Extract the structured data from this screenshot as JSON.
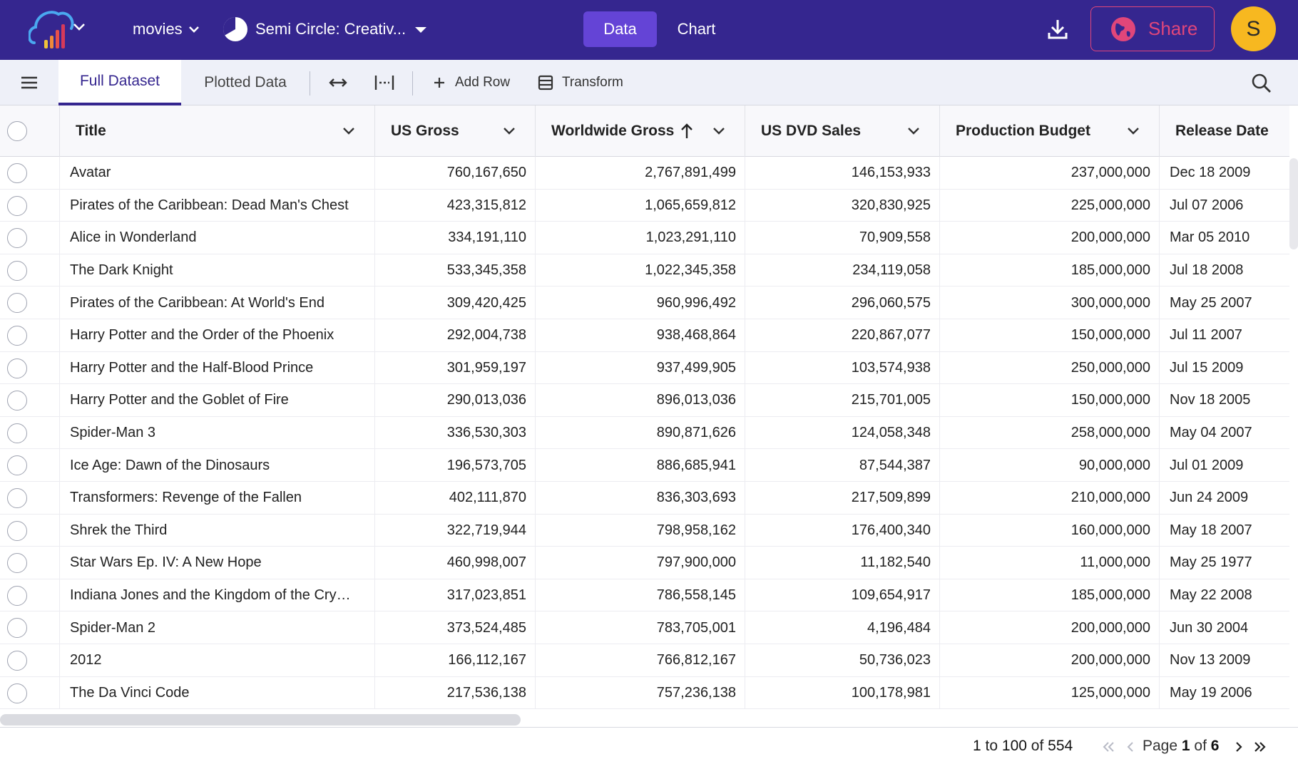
{
  "app": {
    "dataset_name": "movies",
    "chart_type": "Semi Circle: Creativ...",
    "tabs": [
      "Data",
      "Chart"
    ],
    "share_label": "Share",
    "avatar_initial": "S",
    "colors": {
      "topbar": "#35268f",
      "active_tab": "#6444d6",
      "share": "#e0467a",
      "avatar": "#f7b820"
    }
  },
  "toolbar": {
    "tab_full": "Full Dataset",
    "tab_plotted": "Plotted Data",
    "add_row": "Add Row",
    "transform": "Transform"
  },
  "grid": {
    "columns": [
      "Title",
      "US Gross",
      "Worldwide Gross",
      "US DVD Sales",
      "Production Budget",
      "Release Date"
    ],
    "sorted_column": "Worldwide Gross",
    "rows": [
      [
        "Avatar",
        "760,167,650",
        "2,767,891,499",
        "146,153,933",
        "237,000,000",
        "Dec 18 2009"
      ],
      [
        "Pirates of the Caribbean: Dead Man's Chest",
        "423,315,812",
        "1,065,659,812",
        "320,830,925",
        "225,000,000",
        "Jul 07 2006"
      ],
      [
        "Alice in Wonderland",
        "334,191,110",
        "1,023,291,110",
        "70,909,558",
        "200,000,000",
        "Mar 05 2010"
      ],
      [
        "The Dark Knight",
        "533,345,358",
        "1,022,345,358",
        "234,119,058",
        "185,000,000",
        "Jul 18 2008"
      ],
      [
        "Pirates of the Caribbean: At World's End",
        "309,420,425",
        "960,996,492",
        "296,060,575",
        "300,000,000",
        "May 25 2007"
      ],
      [
        "Harry Potter and the Order of the Phoenix",
        "292,004,738",
        "938,468,864",
        "220,867,077",
        "150,000,000",
        "Jul 11 2007"
      ],
      [
        "Harry Potter and the Half-Blood Prince",
        "301,959,197",
        "937,499,905",
        "103,574,938",
        "250,000,000",
        "Jul 15 2009"
      ],
      [
        "Harry Potter and the Goblet of Fire",
        "290,013,036",
        "896,013,036",
        "215,701,005",
        "150,000,000",
        "Nov 18 2005"
      ],
      [
        "Spider-Man 3",
        "336,530,303",
        "890,871,626",
        "124,058,348",
        "258,000,000",
        "May 04 2007"
      ],
      [
        "Ice Age: Dawn of the Dinosaurs",
        "196,573,705",
        "886,685,941",
        "87,544,387",
        "90,000,000",
        "Jul 01 2009"
      ],
      [
        "Transformers: Revenge of the Fallen",
        "402,111,870",
        "836,303,693",
        "217,509,899",
        "210,000,000",
        "Jun 24 2009"
      ],
      [
        "Shrek the Third",
        "322,719,944",
        "798,958,162",
        "176,400,340",
        "160,000,000",
        "May 18 2007"
      ],
      [
        "Star Wars Ep. IV: A New Hope",
        "460,998,007",
        "797,900,000",
        "11,182,540",
        "11,000,000",
        "May 25 1977"
      ],
      [
        "Indiana Jones and the Kingdom of the Cry…",
        "317,023,851",
        "786,558,145",
        "109,654,917",
        "185,000,000",
        "May 22 2008"
      ],
      [
        "Spider-Man 2",
        "373,524,485",
        "783,705,001",
        "4,196,484",
        "200,000,000",
        "Jun 30 2004"
      ],
      [
        "2012",
        "166,112,167",
        "766,812,167",
        "50,736,023",
        "200,000,000",
        "Nov 13 2009"
      ],
      [
        "The Da Vinci Code",
        "217,536,138",
        "757,236,138",
        "100,178,981",
        "125,000,000",
        "May 19 2006"
      ]
    ]
  },
  "pagination": {
    "from": "1",
    "to_word": "to",
    "to": "100",
    "of_word": "of",
    "total": "554",
    "page_word": "Page",
    "page": "1",
    "pages": "6"
  }
}
